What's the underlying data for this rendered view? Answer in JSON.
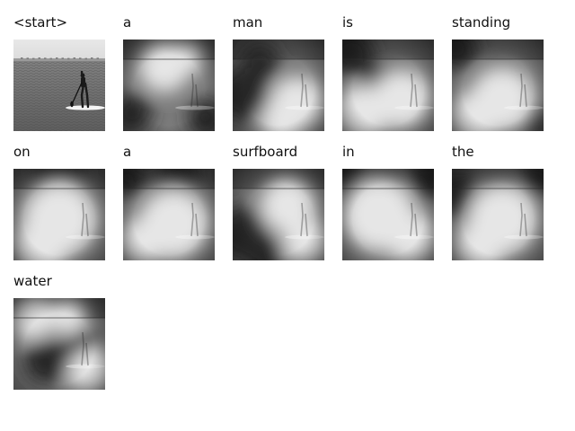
{
  "grid": {
    "tokens": [
      {
        "word": "<start>",
        "kind": "photo"
      },
      {
        "word": "a",
        "kind": "attention",
        "hot": [
          [
            0.45,
            0.3,
            0.28
          ],
          [
            0.7,
            0.2,
            0.18
          ]
        ],
        "cold": [
          [
            0.1,
            0.8,
            0.22
          ],
          [
            0.9,
            0.85,
            0.2
          ]
        ]
      },
      {
        "word": "man",
        "kind": "attention",
        "hot": [
          [
            0.7,
            0.7,
            0.3
          ],
          [
            0.55,
            0.9,
            0.25
          ]
        ],
        "cold": [
          [
            0.1,
            0.6,
            0.3
          ],
          [
            0.3,
            0.25,
            0.22
          ]
        ]
      },
      {
        "word": "is",
        "kind": "attention",
        "hot": [
          [
            0.65,
            0.65,
            0.32
          ],
          [
            0.2,
            0.8,
            0.3
          ]
        ],
        "cold": [
          [
            0.1,
            0.15,
            0.25
          ],
          [
            0.4,
            0.45,
            0.18
          ]
        ]
      },
      {
        "word": "standing",
        "kind": "attention",
        "hot": [
          [
            0.55,
            0.65,
            0.35
          ],
          [
            0.25,
            0.85,
            0.28
          ]
        ],
        "cold": [
          [
            0.05,
            0.1,
            0.22
          ],
          [
            0.9,
            0.9,
            0.18
          ]
        ]
      },
      {
        "word": "on",
        "kind": "attention",
        "hot": [
          [
            0.5,
            0.55,
            0.4
          ],
          [
            0.3,
            0.85,
            0.3
          ]
        ],
        "cold": [
          [
            0.05,
            0.95,
            0.18
          ],
          [
            0.5,
            0.05,
            0.3
          ]
        ]
      },
      {
        "word": "a",
        "kind": "attention",
        "hot": [
          [
            0.55,
            0.6,
            0.38
          ],
          [
            0.2,
            0.8,
            0.25
          ]
        ],
        "cold": [
          [
            0.05,
            0.1,
            0.2
          ],
          [
            0.6,
            0.05,
            0.25
          ]
        ]
      },
      {
        "word": "surfboard",
        "kind": "attention",
        "hot": [
          [
            0.6,
            0.4,
            0.3
          ],
          [
            0.8,
            0.8,
            0.25
          ]
        ],
        "cold": [
          [
            0.1,
            0.7,
            0.3
          ],
          [
            0.35,
            0.95,
            0.22
          ]
        ]
      },
      {
        "word": "in",
        "kind": "attention",
        "hot": [
          [
            0.4,
            0.5,
            0.4
          ],
          [
            0.75,
            0.75,
            0.28
          ]
        ],
        "cold": [
          [
            0.05,
            0.05,
            0.22
          ],
          [
            0.95,
            0.1,
            0.22
          ]
        ]
      },
      {
        "word": "the",
        "kind": "attention",
        "hot": [
          [
            0.55,
            0.55,
            0.38
          ],
          [
            0.3,
            0.85,
            0.28
          ]
        ],
        "cold": [
          [
            0.05,
            0.3,
            0.25
          ],
          [
            0.95,
            0.1,
            0.2
          ]
        ]
      },
      {
        "word": "water",
        "kind": "attention",
        "hot": [
          [
            0.2,
            0.2,
            0.25
          ],
          [
            0.85,
            0.8,
            0.25
          ],
          [
            0.6,
            0.2,
            0.2
          ]
        ],
        "cold": [
          [
            0.35,
            0.7,
            0.25
          ],
          [
            0.75,
            0.55,
            0.22
          ]
        ]
      }
    ]
  }
}
